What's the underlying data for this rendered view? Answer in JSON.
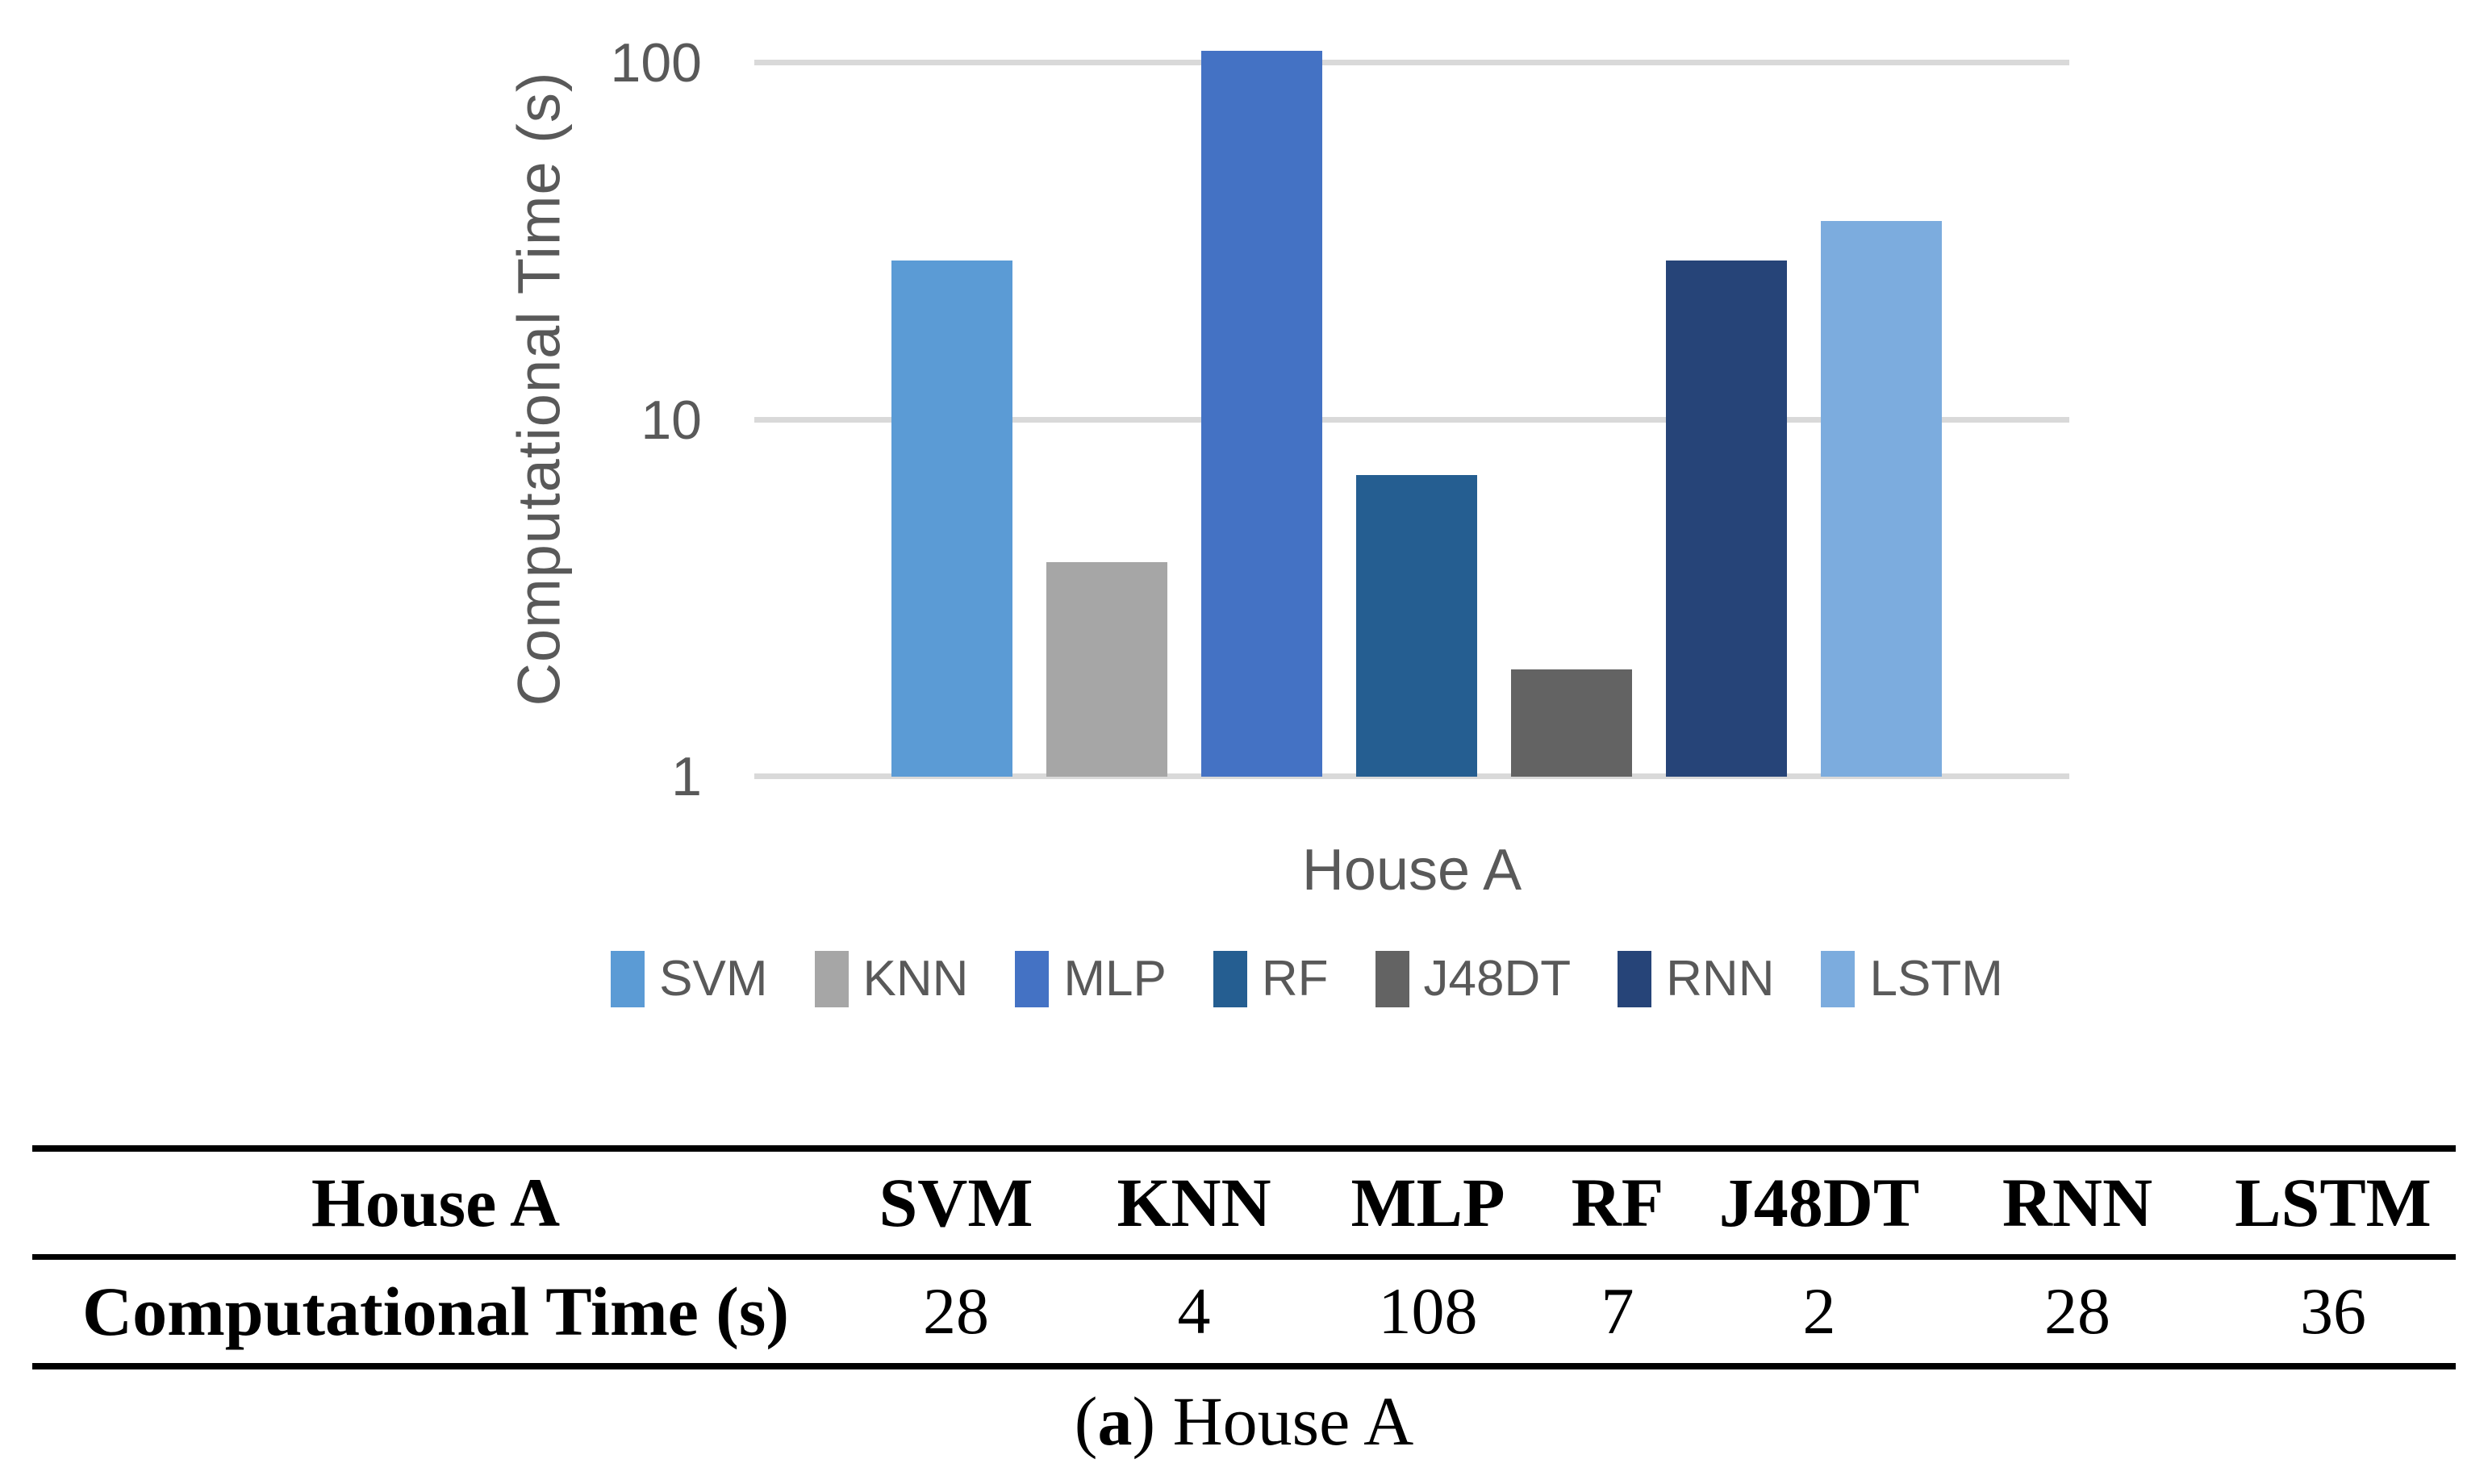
{
  "chart_data": {
    "type": "bar",
    "categories": [
      "SVM",
      "KNN",
      "MLP",
      "RF",
      "J48DT",
      "RNN",
      "LSTM"
    ],
    "values": [
      28,
      4,
      108,
      7,
      2,
      28,
      36
    ],
    "series": [
      {
        "name": "SVM",
        "value": 28,
        "color": "#5B9BD5"
      },
      {
        "name": "KNN",
        "value": 4,
        "color": "#A6A6A6"
      },
      {
        "name": "MLP",
        "value": 108,
        "color": "#4472C4"
      },
      {
        "name": "RF",
        "value": 7,
        "color": "#255E91"
      },
      {
        "name": "J48DT",
        "value": 2,
        "color": "#636363"
      },
      {
        "name": "RNN",
        "value": 28,
        "color": "#264478"
      },
      {
        "name": "LSTM",
        "value": 36,
        "color": "#7CACDE"
      }
    ],
    "title": "",
    "xlabel": "House A",
    "ylabel": "Computational Time (s)",
    "y_scale": "log",
    "y_ticks": [
      "1",
      "10",
      "100"
    ],
    "ylim": [
      1,
      110
    ],
    "grid": "horizontal gridlines on",
    "gridline_color": "#D9D9D9",
    "axis_text_color": "#595959",
    "legend_position": "bottom",
    "legend": [
      "SVM",
      "KNN",
      "MLP",
      "RF",
      "J48DT",
      "RNN",
      "LSTM"
    ]
  },
  "table": {
    "header": [
      "House A",
      "SVM",
      "KNN",
      "MLP",
      "RF",
      "J48DT",
      "RNN",
      "LSTM"
    ],
    "rows": [
      {
        "label": "Computational Time (s)",
        "values": [
          "28",
          "4",
          "108",
          "7",
          "2",
          "28",
          "36"
        ]
      }
    ]
  },
  "caption": {
    "prefix": "(",
    "bold_letter": "a",
    "suffix": ") House A"
  }
}
